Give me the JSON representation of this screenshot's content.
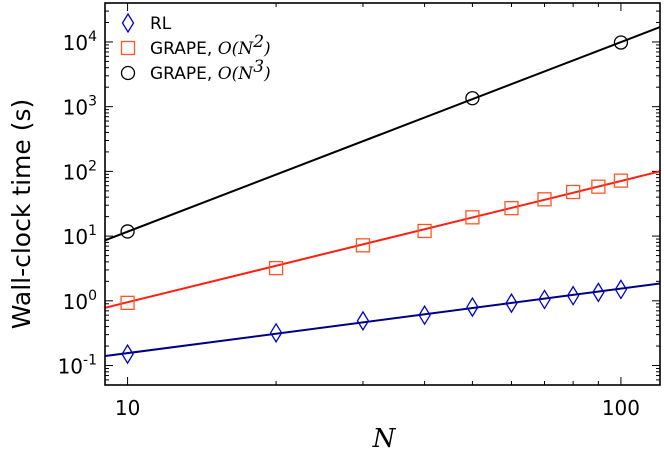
{
  "chart_data": {
    "type": "scatter",
    "xlabel": "N",
    "ylabel": "Wall-clock time (s)",
    "xscale": "log",
    "yscale": "log",
    "xlim": [
      9,
      120
    ],
    "ylim": [
      0.05,
      40000
    ],
    "x_ticks": [
      {
        "value": 10,
        "label": "10"
      },
      {
        "value": 100,
        "label": "100"
      }
    ],
    "y_ticks": [
      {
        "value": 0.1,
        "base": "10",
        "exp": "-1"
      },
      {
        "value": 1,
        "base": "10",
        "exp": "0"
      },
      {
        "value": 10,
        "base": "10",
        "exp": "1"
      },
      {
        "value": 100,
        "base": "10",
        "exp": "2"
      },
      {
        "value": 1000,
        "base": "10",
        "exp": "3"
      },
      {
        "value": 10000,
        "base": "10",
        "exp": "4"
      }
    ],
    "grid": false,
    "legend_position": "top-left",
    "series": [
      {
        "name": "RL",
        "marker": "diamond",
        "color": "#0000cc",
        "x": [
          10,
          20,
          30,
          40,
          50,
          60,
          70,
          80,
          90,
          100
        ],
        "y": [
          0.15,
          0.32,
          0.49,
          0.6,
          0.8,
          0.92,
          1.05,
          1.2,
          1.35,
          1.5
        ],
        "fit": {
          "x": [
            9,
            120
          ],
          "y": [
            0.14,
            1.85
          ],
          "color": "#000080"
        }
      },
      {
        "name": "GRAPE, ",
        "name_math": "O(N",
        "name_exp": "2",
        "name_close": ")",
        "marker": "square",
        "color": "#ff5522",
        "x": [
          10,
          20,
          30,
          40,
          50,
          60,
          70,
          80,
          90,
          100
        ],
        "y": [
          0.93,
          3.2,
          7.2,
          12.0,
          19.5,
          27.0,
          37.0,
          48.0,
          58.0,
          72.0
        ],
        "fit": {
          "x": [
            9,
            120
          ],
          "y": [
            0.78,
            100
          ],
          "color": "#ff2010"
        }
      },
      {
        "name": "GRAPE, ",
        "name_math": "O(N",
        "name_exp": "3",
        "name_close": ")",
        "marker": "circle",
        "color": "#000000",
        "x": [
          10,
          50,
          100
        ],
        "y": [
          11.8,
          1350,
          9800
        ],
        "fit": {
          "x": [
            9,
            120
          ],
          "y": [
            8.6,
            17000
          ],
          "color": "#000000"
        }
      }
    ]
  }
}
